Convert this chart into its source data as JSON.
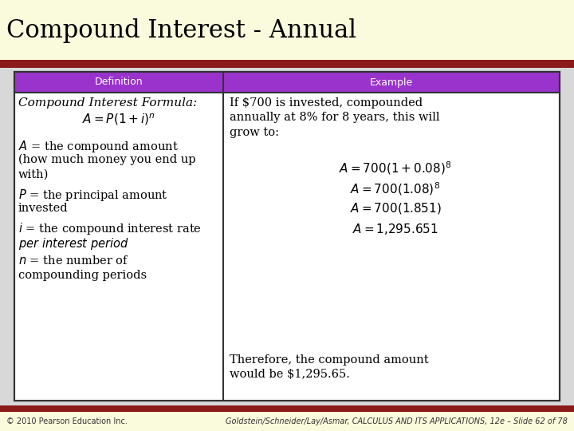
{
  "title": "Compound Interest - Annual",
  "title_color": "#000000",
  "title_bg": "#FAFADC",
  "title_fontsize": 22,
  "dark_red_bar_color": "#8B1A1A",
  "header_bg": "#9933CC",
  "header_text_color": "#FFFFFF",
  "header_def": "Definition",
  "header_ex": "Example",
  "table_border_color": "#333333",
  "table_bg": "#FFFFFF",
  "body_bg": "#D8D8D8",
  "footer_bg": "#FAFADC",
  "footer_red_bar": "#8B1A1A",
  "footer_left": "© 2010 Pearson Education Inc.",
  "footer_right": "Goldstein/Schneider/Lay/Asmar, CALCULUS AND ITS APPLICATIONS, 12e – Slide 62 of 78",
  "def_title": "Compound Interest Formula:",
  "def_formula": "$A = P(1+i)^{n}$",
  "ex_intro": "If $700 is invested, compounded\nannually at 8% for 8 years, this will\ngrow to:",
  "ex_conclusion": "Therefore, the compound amount\nwould be $1,295.65."
}
